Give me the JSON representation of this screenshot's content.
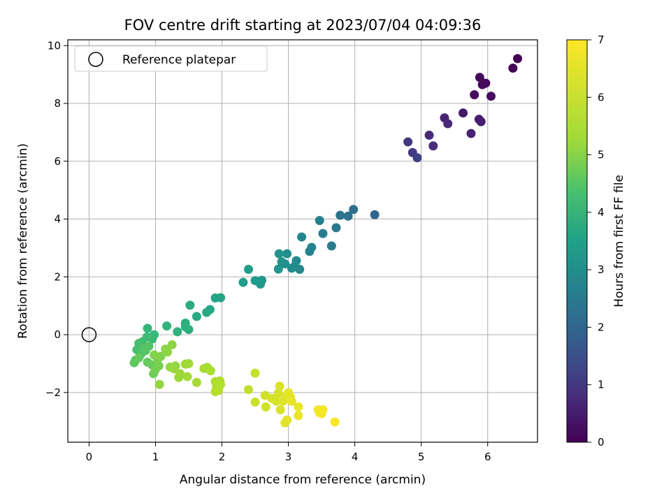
{
  "chart_data": {
    "type": "scatter",
    "title": "FOV centre drift starting at 2023/07/04 04:09:36",
    "xlabel": "Angular distance from reference (arcmin)",
    "ylabel": "Rotation from reference (arcmin)",
    "xlim": [
      -0.32,
      6.75
    ],
    "ylim": [
      -3.72,
      10.2
    ],
    "xticks": [
      0,
      1,
      2,
      3,
      4,
      5,
      6
    ],
    "yticks": [
      -2,
      0,
      2,
      4,
      6,
      8,
      10
    ],
    "grid": true,
    "legend": {
      "placement": "top-left",
      "entries": [
        "Reference platepar"
      ]
    },
    "reference": {
      "x": 0,
      "y": 0,
      "label": "Reference platepar"
    },
    "colorbar": {
      "label": "Hours from first FF file",
      "min": 0,
      "max": 7,
      "ticks": [
        0,
        1,
        2,
        3,
        4,
        5,
        6,
        7
      ],
      "colormap": "viridis"
    },
    "points": [
      {
        "x": 6.45,
        "y": 9.55,
        "c": 0.0
      },
      {
        "x": 6.38,
        "y": 9.22,
        "c": 0.05
      },
      {
        "x": 5.88,
        "y": 8.9,
        "c": 0.1
      },
      {
        "x": 5.92,
        "y": 8.65,
        "c": 0.12
      },
      {
        "x": 5.97,
        "y": 8.7,
        "c": 0.15
      },
      {
        "x": 5.8,
        "y": 8.3,
        "c": 0.2
      },
      {
        "x": 6.05,
        "y": 8.25,
        "c": 0.25
      },
      {
        "x": 5.63,
        "y": 7.67,
        "c": 0.45
      },
      {
        "x": 5.87,
        "y": 7.45,
        "c": 0.5
      },
      {
        "x": 5.9,
        "y": 7.37,
        "c": 0.55
      },
      {
        "x": 5.75,
        "y": 6.96,
        "c": 0.65
      },
      {
        "x": 5.35,
        "y": 7.5,
        "c": 0.7
      },
      {
        "x": 5.4,
        "y": 7.3,
        "c": 0.75
      },
      {
        "x": 5.12,
        "y": 6.9,
        "c": 0.85
      },
      {
        "x": 5.18,
        "y": 6.53,
        "c": 0.95
      },
      {
        "x": 4.8,
        "y": 6.67,
        "c": 1.1
      },
      {
        "x": 4.87,
        "y": 6.3,
        "c": 1.2
      },
      {
        "x": 4.94,
        "y": 6.12,
        "c": 1.3
      },
      {
        "x": 4.3,
        "y": 4.15,
        "c": 2.25
      },
      {
        "x": 3.98,
        "y": 4.33,
        "c": 2.5
      },
      {
        "x": 3.9,
        "y": 4.1,
        "c": 2.6
      },
      {
        "x": 3.78,
        "y": 4.13,
        "c": 2.7
      },
      {
        "x": 3.72,
        "y": 3.7,
        "c": 2.8
      },
      {
        "x": 3.65,
        "y": 3.07,
        "c": 2.9
      },
      {
        "x": 3.52,
        "y": 3.5,
        "c": 3.0
      },
      {
        "x": 3.47,
        "y": 3.95,
        "c": 3.05
      },
      {
        "x": 3.35,
        "y": 3.02,
        "c": 3.1
      },
      {
        "x": 3.32,
        "y": 2.88,
        "c": 3.15
      },
      {
        "x": 3.2,
        "y": 3.38,
        "c": 3.2
      },
      {
        "x": 3.17,
        "y": 2.26,
        "c": 3.25
      },
      {
        "x": 3.12,
        "y": 2.56,
        "c": 3.3
      },
      {
        "x": 3.1,
        "y": 2.38,
        "c": 3.35
      },
      {
        "x": 3.05,
        "y": 2.3,
        "c": 3.4
      },
      {
        "x": 2.98,
        "y": 2.8,
        "c": 3.45
      },
      {
        "x": 2.95,
        "y": 2.45,
        "c": 3.5
      },
      {
        "x": 2.9,
        "y": 2.52,
        "c": 3.55
      },
      {
        "x": 2.86,
        "y": 2.8,
        "c": 3.6
      },
      {
        "x": 2.85,
        "y": 2.27,
        "c": 3.65
      },
      {
        "x": 2.6,
        "y": 1.88,
        "c": 3.7
      },
      {
        "x": 2.58,
        "y": 1.75,
        "c": 3.75
      },
      {
        "x": 2.5,
        "y": 1.87,
        "c": 3.8
      },
      {
        "x": 2.4,
        "y": 2.26,
        "c": 3.85
      },
      {
        "x": 2.32,
        "y": 1.81,
        "c": 3.9
      },
      {
        "x": 1.98,
        "y": 1.28,
        "c": 4.05
      },
      {
        "x": 1.9,
        "y": 1.27,
        "c": 4.1
      },
      {
        "x": 1.82,
        "y": 0.87,
        "c": 4.15
      },
      {
        "x": 1.77,
        "y": 0.77,
        "c": 4.2
      },
      {
        "x": 1.62,
        "y": 0.63,
        "c": 4.25
      },
      {
        "x": 1.52,
        "y": 1.02,
        "c": 4.3
      },
      {
        "x": 1.5,
        "y": 0.18,
        "c": 4.35
      },
      {
        "x": 1.45,
        "y": 0.4,
        "c": 4.4
      },
      {
        "x": 1.45,
        "y": 0.27,
        "c": 4.45
      },
      {
        "x": 1.33,
        "y": 0.1,
        "c": 4.5
      },
      {
        "x": 1.17,
        "y": 0.3,
        "c": 4.55
      },
      {
        "x": 0.88,
        "y": 0.22,
        "c": 4.65
      },
      {
        "x": 0.98,
        "y": 0.0,
        "c": 4.7
      },
      {
        "x": 0.95,
        "y": -0.15,
        "c": 4.75
      },
      {
        "x": 0.87,
        "y": -0.08,
        "c": 4.8
      },
      {
        "x": 0.8,
        "y": -0.25,
        "c": 4.85
      },
      {
        "x": 0.75,
        "y": -0.3,
        "c": 4.9
      },
      {
        "x": 0.72,
        "y": -0.52,
        "c": 4.95
      },
      {
        "x": 0.78,
        "y": -0.68,
        "c": 5.0
      },
      {
        "x": 0.85,
        "y": -0.55,
        "c": 5.05
      },
      {
        "x": 0.9,
        "y": -0.4,
        "c": 5.1
      },
      {
        "x": 0.83,
        "y": -0.48,
        "c": 5.15
      },
      {
        "x": 0.7,
        "y": -0.88,
        "c": 5.2
      },
      {
        "x": 0.68,
        "y": -0.97,
        "c": 5.25
      },
      {
        "x": 0.75,
        "y": -0.8,
        "c": 5.3
      },
      {
        "x": 0.88,
        "y": -0.95,
        "c": 5.35
      },
      {
        "x": 0.95,
        "y": -1.05,
        "c": 5.4
      },
      {
        "x": 0.97,
        "y": -1.35,
        "c": 5.45
      },
      {
        "x": 1.0,
        "y": -1.2,
        "c": 5.5
      },
      {
        "x": 1.05,
        "y": -1.08,
        "c": 5.55
      },
      {
        "x": 1.03,
        "y": -0.85,
        "c": 5.6
      },
      {
        "x": 1.08,
        "y": -0.75,
        "c": 5.65
      },
      {
        "x": 0.98,
        "y": -0.7,
        "c": 5.7
      },
      {
        "x": 1.15,
        "y": -0.5,
        "c": 5.75
      },
      {
        "x": 1.18,
        "y": -0.6,
        "c": 5.8
      },
      {
        "x": 1.25,
        "y": -0.35,
        "c": 5.82
      },
      {
        "x": 1.06,
        "y": -1.72,
        "c": 5.85
      },
      {
        "x": 1.22,
        "y": -1.12,
        "c": 5.88
      },
      {
        "x": 1.3,
        "y": -1.08,
        "c": 5.9
      },
      {
        "x": 1.28,
        "y": -1.18,
        "c": 5.92
      },
      {
        "x": 1.35,
        "y": -1.48,
        "c": 5.95
      },
      {
        "x": 1.37,
        "y": -1.35,
        "c": 5.97
      },
      {
        "x": 1.45,
        "y": -1.02,
        "c": 6.0
      },
      {
        "x": 1.5,
        "y": -1.0,
        "c": 6.02
      },
      {
        "x": 1.48,
        "y": -1.45,
        "c": 6.04
      },
      {
        "x": 1.62,
        "y": -1.65,
        "c": 6.06
      },
      {
        "x": 1.73,
        "y": -1.17,
        "c": 6.08
      },
      {
        "x": 1.78,
        "y": -1.13,
        "c": 6.1
      },
      {
        "x": 1.83,
        "y": -1.25,
        "c": 6.12
      },
      {
        "x": 1.9,
        "y": -1.62,
        "c": 6.14
      },
      {
        "x": 1.92,
        "y": -1.78,
        "c": 6.16
      },
      {
        "x": 1.97,
        "y": -1.6,
        "c": 6.18
      },
      {
        "x": 1.98,
        "y": -1.72,
        "c": 6.2
      },
      {
        "x": 1.9,
        "y": -1.97,
        "c": 6.22
      },
      {
        "x": 1.95,
        "y": -1.93,
        "c": 6.24
      },
      {
        "x": 2.4,
        "y": -1.9,
        "c": 6.35
      },
      {
        "x": 2.5,
        "y": -1.33,
        "c": 6.4
      },
      {
        "x": 2.5,
        "y": -2.33,
        "c": 6.45
      },
      {
        "x": 2.65,
        "y": -2.1,
        "c": 6.5
      },
      {
        "x": 2.66,
        "y": -2.5,
        "c": 6.52
      },
      {
        "x": 2.75,
        "y": -2.2,
        "c": 6.55
      },
      {
        "x": 2.82,
        "y": -2.3,
        "c": 6.57
      },
      {
        "x": 2.85,
        "y": -2.02,
        "c": 6.6
      },
      {
        "x": 2.87,
        "y": -1.78,
        "c": 6.62
      },
      {
        "x": 2.88,
        "y": -2.6,
        "c": 6.64
      },
      {
        "x": 2.92,
        "y": -2.3,
        "c": 6.66
      },
      {
        "x": 2.95,
        "y": -3.05,
        "c": 6.68
      },
      {
        "x": 2.97,
        "y": -2.12,
        "c": 6.7
      },
      {
        "x": 2.98,
        "y": -2.95,
        "c": 6.72
      },
      {
        "x": 3.0,
        "y": -2.0,
        "c": 6.74
      },
      {
        "x": 3.03,
        "y": -2.15,
        "c": 6.76
      },
      {
        "x": 3.05,
        "y": -2.3,
        "c": 6.78
      },
      {
        "x": 3.15,
        "y": -2.5,
        "c": 6.8
      },
      {
        "x": 3.15,
        "y": -2.8,
        "c": 6.82
      },
      {
        "x": 3.45,
        "y": -2.6,
        "c": 6.86
      },
      {
        "x": 3.47,
        "y": -2.7,
        "c": 6.88
      },
      {
        "x": 3.5,
        "y": -2.73,
        "c": 6.9
      },
      {
        "x": 3.52,
        "y": -2.6,
        "c": 6.92
      },
      {
        "x": 3.7,
        "y": -3.02,
        "c": 6.98
      }
    ]
  }
}
